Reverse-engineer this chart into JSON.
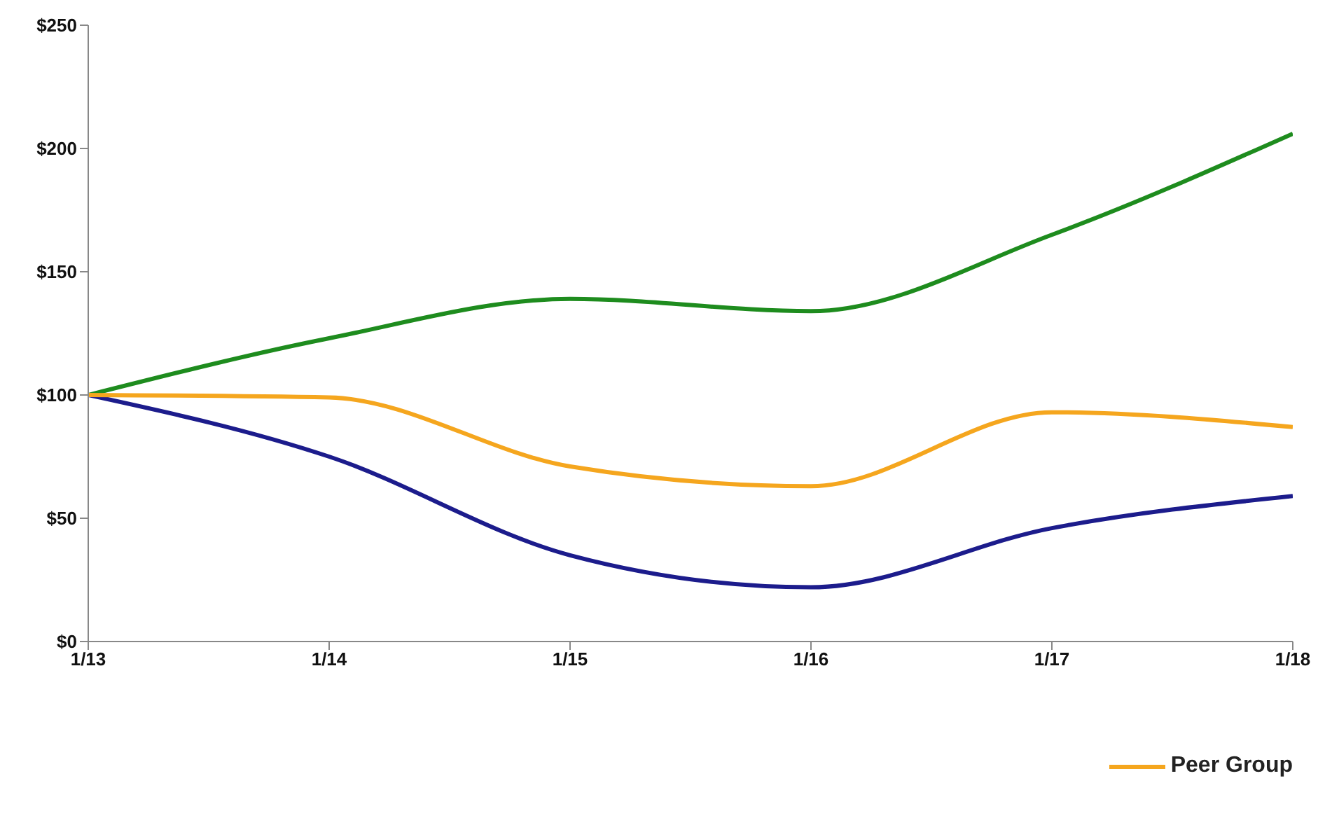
{
  "chart_data": {
    "type": "line",
    "categories": [
      "1/13",
      "1/14",
      "1/15",
      "1/16",
      "1/17",
      "1/18"
    ],
    "series": [
      {
        "color": "#1c1c8c",
        "values": [
          100,
          75,
          35,
          22,
          46,
          59
        ]
      },
      {
        "color": "#1e8c1e",
        "values": [
          100,
          123,
          139,
          134,
          165,
          206
        ]
      },
      {
        "name": "Peer Group",
        "color": "#f5a61e",
        "values": [
          100,
          99,
          71,
          63,
          93,
          87
        ]
      }
    ],
    "ylim": [
      0,
      250
    ],
    "yticks": [
      {
        "value": 0,
        "label": "$0"
      },
      {
        "value": 50,
        "label": "$50"
      },
      {
        "value": 100,
        "label": "$100"
      },
      {
        "value": 150,
        "label": "$150"
      },
      {
        "value": 200,
        "label": "$200"
      },
      {
        "value": 250,
        "label": "$250"
      }
    ],
    "grid": false,
    "legend": "bottom",
    "marker": "none",
    "line_style": "solid"
  }
}
